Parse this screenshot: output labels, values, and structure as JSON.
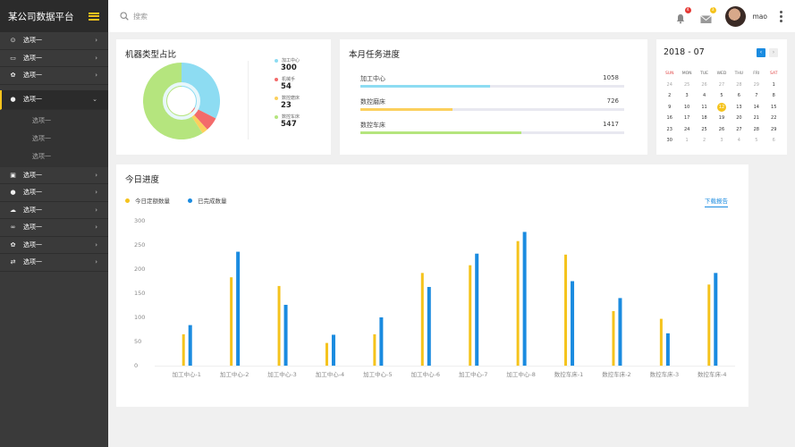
{
  "app": {
    "title": "某公司数据平台"
  },
  "sidebar": {
    "items_top": [
      {
        "label": "选项一",
        "icon": "dashboard-icon",
        "glyph": "⊙"
      },
      {
        "label": "选项一",
        "icon": "inbox-icon",
        "glyph": "▭"
      },
      {
        "label": "选项一",
        "icon": "gear-icon",
        "glyph": "✿"
      }
    ],
    "active": {
      "label": "选项一",
      "icon": "user-icon",
      "glyph": "●"
    },
    "submenu": [
      "选项一",
      "选项一",
      "选项一"
    ],
    "items_bottom": [
      {
        "label": "选项一",
        "icon": "calendar-icon",
        "glyph": "▣"
      },
      {
        "label": "选项一",
        "icon": "chat-icon",
        "glyph": "●"
      },
      {
        "label": "选项一",
        "icon": "cloud-icon",
        "glyph": "☁"
      },
      {
        "label": "选项一",
        "icon": "link-icon",
        "glyph": "∞"
      },
      {
        "label": "选项一",
        "icon": "gear-icon",
        "glyph": "✿"
      },
      {
        "label": "选项一",
        "icon": "shuffle-icon",
        "glyph": "⇄"
      }
    ]
  },
  "header": {
    "search_placeholder": "搜索",
    "bell_badge": "4",
    "mail_badge": "3",
    "username": "mao",
    "bell_badge_color": "#e53935",
    "mail_badge_color": "#f5c31c"
  },
  "pie_card": {
    "title": "机器类型占比",
    "items": [
      {
        "label": "加工中心",
        "value": "300",
        "color": "#8ddcf2"
      },
      {
        "label": "机械手",
        "value": "54",
        "color": "#f36b6b"
      },
      {
        "label": "数控磨床",
        "value": "23",
        "color": "#fbd05d"
      },
      {
        "label": "数控车床",
        "value": "547",
        "color": "#b5e57e"
      }
    ]
  },
  "progress_card": {
    "title": "本月任务进度",
    "rows": [
      {
        "label": "加工中心",
        "value": "1058",
        "fraction": 0.49,
        "color": "#8ddcf2"
      },
      {
        "label": "数控磨床",
        "value": "726",
        "fraction": 0.35,
        "color": "#fbd05d"
      },
      {
        "label": "数控车床",
        "value": "1417",
        "fraction": 0.61,
        "color": "#b5e57e"
      }
    ]
  },
  "calendar": {
    "title": "2018 - 07",
    "prev": "‹",
    "next": "›",
    "weekdays": [
      "SUN",
      "MON",
      "TUE",
      "WED",
      "THU",
      "FRI",
      "SAT"
    ],
    "weeks": [
      [
        {
          "d": "24",
          "m": true
        },
        {
          "d": "25",
          "m": true
        },
        {
          "d": "26",
          "m": true
        },
        {
          "d": "27",
          "m": true
        },
        {
          "d": "28",
          "m": true
        },
        {
          "d": "29",
          "m": true
        },
        {
          "d": "1"
        }
      ],
      [
        {
          "d": "2"
        },
        {
          "d": "3"
        },
        {
          "d": "4"
        },
        {
          "d": "5"
        },
        {
          "d": "6"
        },
        {
          "d": "7"
        },
        {
          "d": "8"
        }
      ],
      [
        {
          "d": "9"
        },
        {
          "d": "10"
        },
        {
          "d": "11"
        },
        {
          "d": "12",
          "today": true
        },
        {
          "d": "13"
        },
        {
          "d": "14"
        },
        {
          "d": "15"
        }
      ],
      [
        {
          "d": "16"
        },
        {
          "d": "17"
        },
        {
          "d": "18"
        },
        {
          "d": "19"
        },
        {
          "d": "20"
        },
        {
          "d": "21"
        },
        {
          "d": "22"
        }
      ],
      [
        {
          "d": "23"
        },
        {
          "d": "24"
        },
        {
          "d": "25"
        },
        {
          "d": "26"
        },
        {
          "d": "27"
        },
        {
          "d": "28"
        },
        {
          "d": "29"
        }
      ],
      [
        {
          "d": "30"
        },
        {
          "d": "1",
          "m": true
        },
        {
          "d": "2",
          "m": true
        },
        {
          "d": "3",
          "m": true
        },
        {
          "d": "4",
          "m": true
        },
        {
          "d": "5",
          "m": true
        },
        {
          "d": "6",
          "m": true
        }
      ]
    ]
  },
  "chart_card": {
    "title": "今日进度",
    "download_label": "下载报告"
  },
  "chart_data": {
    "type": "bar",
    "categories": [
      "加工中心-1",
      "加工中心-2",
      "加工中心-3",
      "加工中心-4",
      "加工中心-5",
      "加工中心-6",
      "加工中心-7",
      "加工中心-8",
      "数控车床-1",
      "数控车床-2",
      "数控车床-3",
      "数控车床-4"
    ],
    "series": [
      {
        "name": "今日定额数量",
        "color": "#f5c31c",
        "values": [
          65,
          183,
          165,
          47,
          65,
          192,
          208,
          258,
          230,
          113,
          97,
          168
        ]
      },
      {
        "name": "已完成数量",
        "color": "#1a8be0",
        "values": [
          84,
          236,
          126,
          64,
          100,
          163,
          232,
          277,
          175,
          140,
          67,
          192
        ]
      }
    ],
    "yticks": [
      "0",
      "50",
      "100",
      "150",
      "200",
      "250",
      "300"
    ],
    "ylim": [
      0,
      300
    ],
    "legend_position": "top-left",
    "grid": false
  }
}
